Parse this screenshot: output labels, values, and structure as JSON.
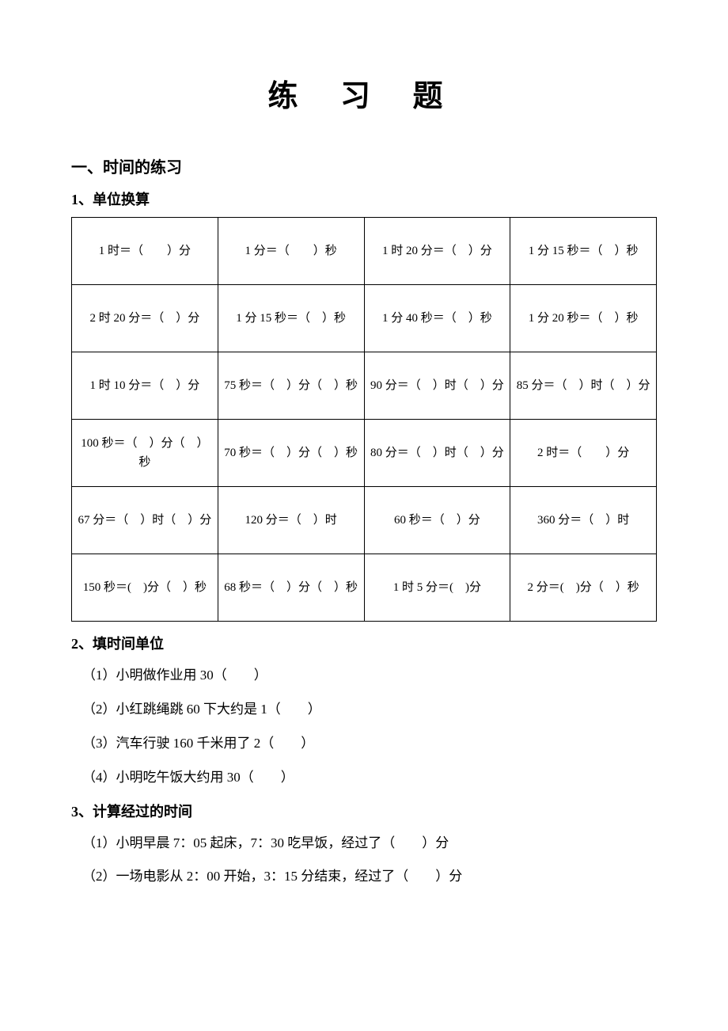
{
  "title": "练 习 题",
  "section1": {
    "heading": "一、时间的练习",
    "part1": {
      "heading": "1、单位换算",
      "rows": [
        [
          "1 时＝（　　）分",
          "1 分＝（　　）秒",
          "1 时 20 分＝（　）分",
          "1 分 15 秒＝（　）秒"
        ],
        [
          "2 时 20 分＝（　）分",
          "1 分 15 秒＝（　）秒",
          "1 分 40 秒＝（　）秒",
          "1 分 20 秒＝（　）秒"
        ],
        [
          "1 时 10 分＝（　）分",
          "75 秒＝（　）分（　）秒",
          "90 分＝（　）时（　）分",
          "85 分＝（　）时（　）分"
        ],
        [
          "100 秒＝（　）分（　）秒",
          "70 秒＝（　）分（　）秒",
          "80 分＝（　）时（　）分",
          "2 时＝（　　）分"
        ],
        [
          "67 分＝（　）时（　）分",
          "120 分＝（　）时",
          "60 秒＝（　）分",
          "360 分＝（　）时"
        ],
        [
          "150 秒＝(　)分（　）秒",
          "68 秒＝（　）分（　）秒",
          "1 时 5 分＝(　)分",
          "2 分＝(　)分（　）秒"
        ]
      ]
    },
    "part2": {
      "heading": "2、填时间单位",
      "items": [
        "（1）小明做作业用 30（　　）",
        "（2）小红跳绳跳 60 下大约是 1（　　）",
        "（3）汽车行驶 160 千米用了 2（　　）",
        "（4）小明吃午饭大约用 30（　　）"
      ]
    },
    "part3": {
      "heading": "3、计算经过的时间",
      "items": [
        "（1）小明早晨 7：05 起床，7：30 吃早饭，经过了（　　）分",
        "（2）一场电影从 2：00 开始，3：15 分结束，经过了（　　）分"
      ]
    }
  }
}
